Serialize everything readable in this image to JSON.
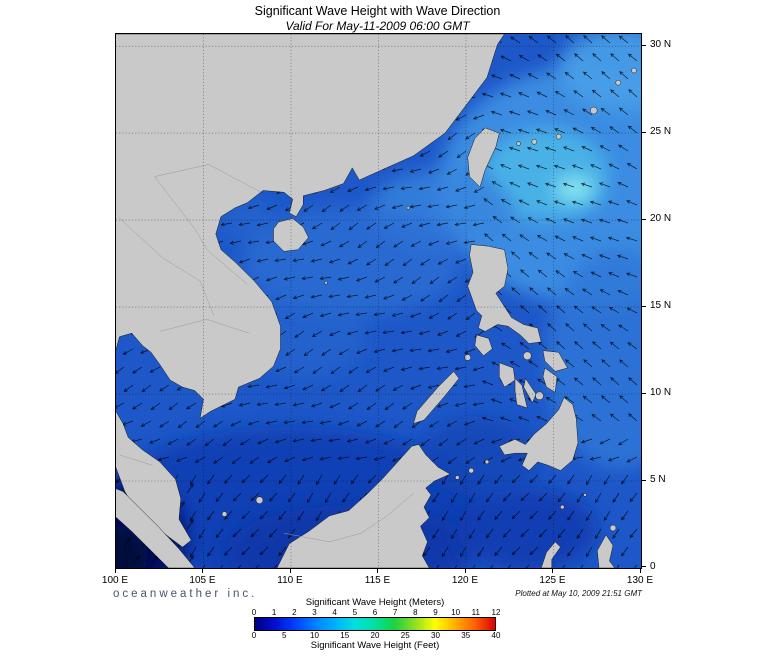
{
  "header": {
    "title": "Significant Wave Height with Wave Direction",
    "subtitle": "Valid For May-11-2009 06:00 GMT"
  },
  "map": {
    "lon_labels": [
      "100 E",
      "105 E",
      "110 E",
      "115 E",
      "120 E",
      "125 E",
      "130 E"
    ],
    "lat_labels": [
      "30 N",
      "25 N",
      "20 N",
      "15 N",
      "10 N",
      "5 N",
      "0"
    ]
  },
  "footer": {
    "brand": "oceanweather inc.",
    "plotted": "Plotted at May 10, 2009 21:51 GMT"
  },
  "legend": {
    "meters_label": "Significant Wave Height (Meters)",
    "meters_ticks": [
      "0",
      "1",
      "2",
      "3",
      "4",
      "5",
      "6",
      "7",
      "8",
      "9",
      "10",
      "11",
      "12"
    ],
    "feet_label": "Significant Wave Height (Feet)",
    "feet_ticks": [
      "0",
      "5",
      "10",
      "15",
      "20",
      "25",
      "30",
      "35",
      "40"
    ],
    "colors": [
      "#000080",
      "#0010d0",
      "#0040ff",
      "#0080ff",
      "#00b0ff",
      "#00e0e0",
      "#00e0a0",
      "#20d040",
      "#90e020",
      "#ffff00",
      "#ffb000",
      "#ff6000",
      "#e00000"
    ]
  },
  "colors": {
    "ocean_base": "#1d57c8",
    "ocean_dark": "#0a35a8",
    "indian_dark": "#041062",
    "land": "#c9c9c9",
    "coast": "#1a1a1a",
    "border": "#9a9a9a",
    "arrow": "#000000",
    "grid": "#000000"
  }
}
